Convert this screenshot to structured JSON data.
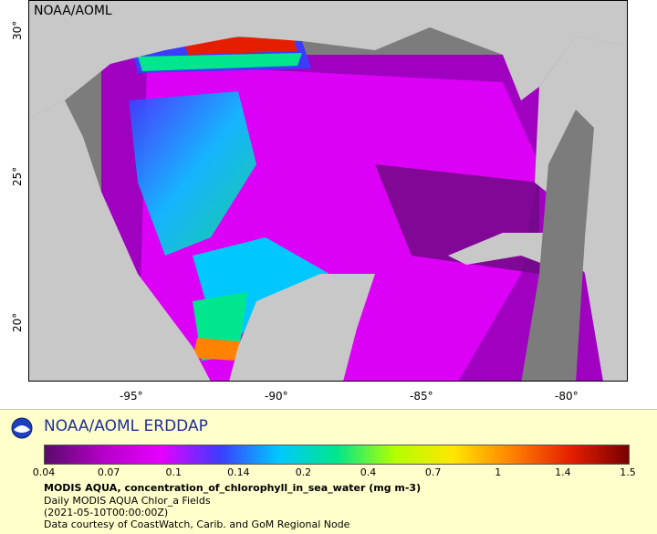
{
  "map": {
    "corner_label": "NOAA/AOML",
    "x_ticks": [
      "-95°",
      "-90°",
      "-85°",
      "-80°"
    ],
    "y_ticks": [
      "30°",
      "25°",
      "20°"
    ]
  },
  "legend": {
    "brand": "NOAA/AOML ERDDAP",
    "colorbar_ticks": [
      "0.04",
      "0.07",
      "0.1",
      "0.14",
      "0.2",
      "0.4",
      "0.7",
      "1",
      "1.4",
      "1.5"
    ],
    "colors": [
      "#5a0a6a",
      "#b400c8",
      "#e600ff",
      "#3c3cff",
      "#00c8ff",
      "#00e68c",
      "#b4ff00",
      "#ffe600",
      "#ff8200",
      "#e61e00",
      "#780000"
    ],
    "title": "MODIS AQUA, concentration_of_chlorophyll_in_sea_water (mg m-3)",
    "line1": "Daily MODIS AQUA Chlor_a Fields",
    "line2": "(2021-05-10T00:00:00Z)",
    "line3": "Data courtesy of CoastWatch, Carib. and GoM Regional Node"
  }
}
